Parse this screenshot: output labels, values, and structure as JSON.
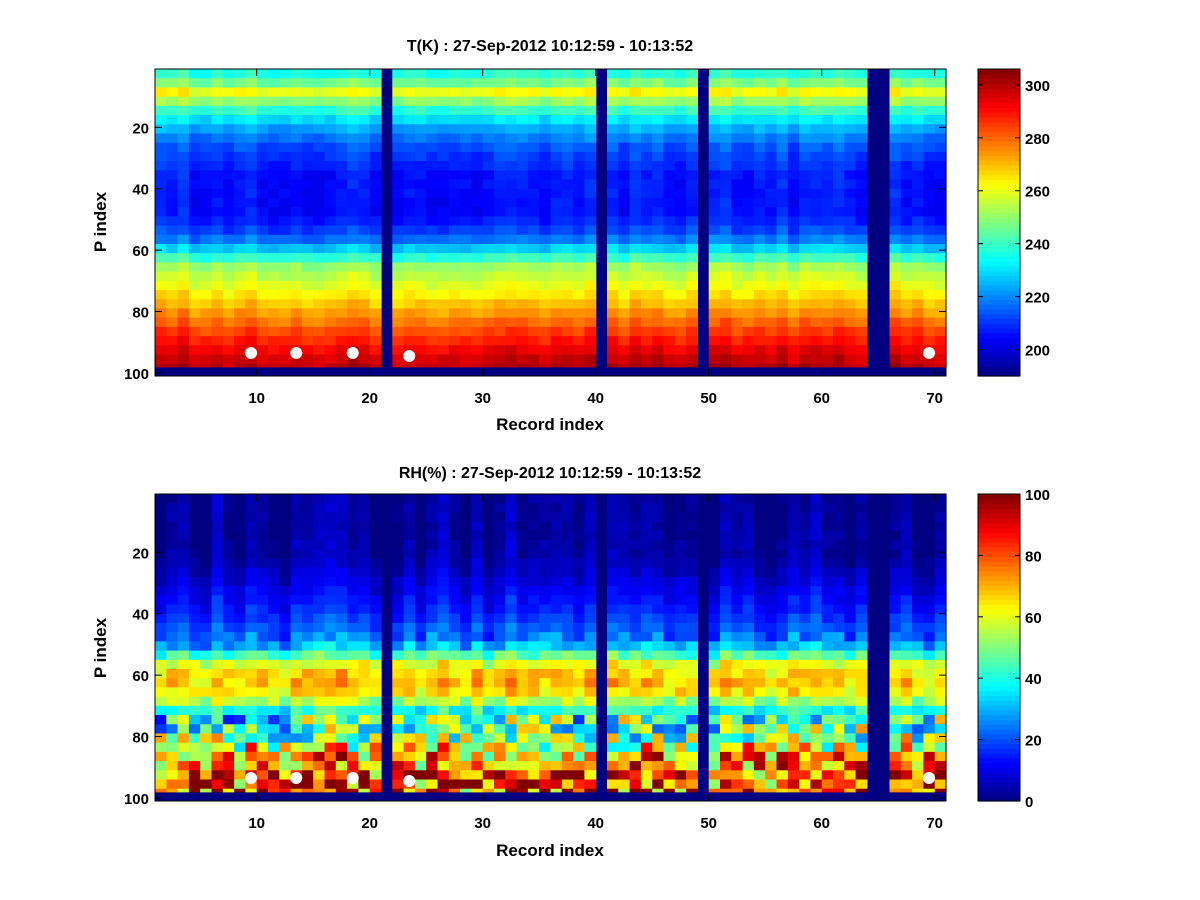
{
  "chart_data": [
    {
      "type": "heatmap",
      "title": "T(K) : 27-Sep-2012 10:12:59 - 10:13:52",
      "xlabel": "Record index",
      "ylabel": "P index",
      "x_range": [
        1,
        71
      ],
      "y_range": [
        1,
        101
      ],
      "y_reversed": true,
      "x_ticks": [
        10,
        20,
        30,
        40,
        50,
        60,
        70
      ],
      "y_ticks": [
        20,
        40,
        60,
        80,
        100
      ],
      "colormap": "jet",
      "clim": [
        190,
        306
      ],
      "colorbar_ticks": [
        200,
        220,
        240,
        260,
        280,
        300
      ],
      "missing_columns": [
        21,
        40,
        49,
        64,
        65
      ],
      "invalid_rows_from": 98,
      "profile_by_p_index": [
        [
          1,
          235
        ],
        [
          5,
          248
        ],
        [
          8,
          262
        ],
        [
          10,
          255
        ],
        [
          14,
          240
        ],
        [
          18,
          228
        ],
        [
          25,
          215
        ],
        [
          35,
          207
        ],
        [
          48,
          206
        ],
        [
          55,
          215
        ],
        [
          60,
          232
        ],
        [
          65,
          252
        ],
        [
          72,
          262
        ],
        [
          80,
          275
        ],
        [
          88,
          288
        ],
        [
          95,
          298
        ],
        [
          97,
          300
        ]
      ],
      "markers": [
        {
          "x": 9,
          "y": 93
        },
        {
          "x": 13,
          "y": 93
        },
        {
          "x": 18,
          "y": 93
        },
        {
          "x": 23,
          "y": 94
        },
        {
          "x": 69,
          "y": 93
        }
      ]
    },
    {
      "type": "heatmap",
      "title": "RH(%) : 27-Sep-2012 10:12:59 - 10:13:52",
      "xlabel": "Record index",
      "ylabel": "P index",
      "x_range": [
        1,
        71
      ],
      "y_range": [
        1,
        101
      ],
      "y_reversed": true,
      "x_ticks": [
        10,
        20,
        30,
        40,
        50,
        60,
        70
      ],
      "y_ticks": [
        20,
        40,
        60,
        80,
        100
      ],
      "colormap": "jet",
      "clim": [
        0,
        100
      ],
      "colorbar_ticks": [
        0,
        20,
        40,
        60,
        80,
        100
      ],
      "missing_columns": [
        21,
        40,
        49,
        64,
        65
      ],
      "invalid_rows_from": 98,
      "profile_by_p_index": [
        [
          1,
          2
        ],
        [
          20,
          3
        ],
        [
          28,
          8
        ],
        [
          38,
          15
        ],
        [
          46,
          22
        ],
        [
          50,
          30
        ],
        [
          54,
          50
        ],
        [
          57,
          65
        ],
        [
          62,
          68
        ],
        [
          67,
          62
        ],
        [
          70,
          40
        ],
        [
          74,
          42
        ],
        [
          80,
          50
        ],
        [
          86,
          72
        ],
        [
          92,
          82
        ],
        [
          97,
          80
        ]
      ],
      "markers": [
        {
          "x": 9,
          "y": 93
        },
        {
          "x": 13,
          "y": 93
        },
        {
          "x": 18,
          "y": 93
        },
        {
          "x": 23,
          "y": 94
        },
        {
          "x": 69,
          "y": 93
        }
      ]
    }
  ]
}
